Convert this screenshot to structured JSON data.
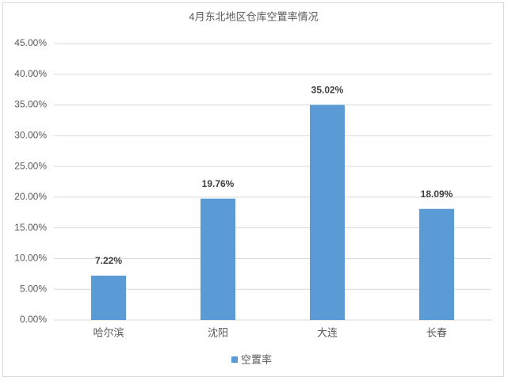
{
  "chart_data": {
    "type": "bar",
    "title": "4月东北地区仓库空置率情况",
    "categories": [
      "哈尔滨",
      "沈阳",
      "大连",
      "长春"
    ],
    "series": [
      {
        "name": "空置率",
        "color": "#5b9bd5",
        "values": [
          7.22,
          19.76,
          35.02,
          18.09
        ],
        "value_labels": [
          "7.22%",
          "19.76%",
          "35.02%",
          "18.09%"
        ]
      }
    ],
    "ylim": [
      0,
      45
    ],
    "yticks": [
      {
        "value": 0,
        "label": "0.00%"
      },
      {
        "value": 5,
        "label": "5.00%"
      },
      {
        "value": 10,
        "label": "10.00%"
      },
      {
        "value": 15,
        "label": "15.00%"
      },
      {
        "value": 20,
        "label": "20.00%"
      },
      {
        "value": 25,
        "label": "25.00%"
      },
      {
        "value": 30,
        "label": "30.00%"
      },
      {
        "value": 35,
        "label": "35.00%"
      },
      {
        "value": 40,
        "label": "40.00%"
      },
      {
        "value": 45,
        "label": "45.00%"
      }
    ],
    "grid": true,
    "legend": "bottom"
  }
}
